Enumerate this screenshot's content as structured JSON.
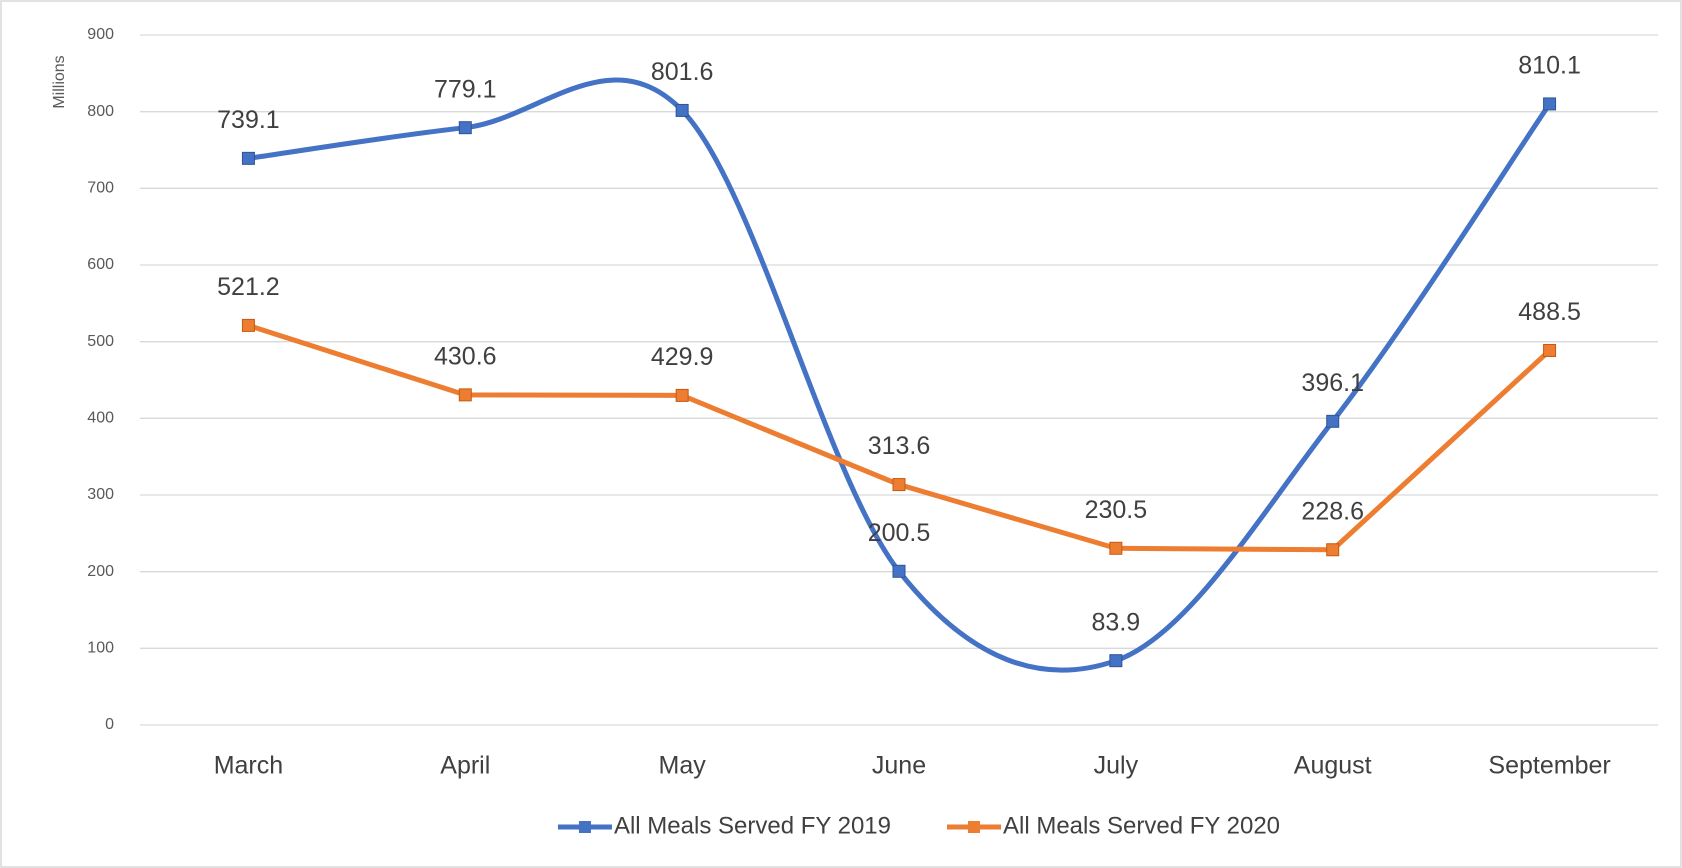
{
  "chart_data": {
    "type": "line",
    "y_label": "Millions",
    "categories": [
      "March",
      "April",
      "May",
      "June",
      "July",
      "August",
      "September"
    ],
    "series": [
      {
        "name": "All Meals Served FY 2019",
        "color": "#4472c4",
        "smooth": true,
        "values": [
          739.1,
          779.1,
          801.6,
          200.5,
          83.9,
          396.1,
          810.1
        ]
      },
      {
        "name": "All Meals Served FY 2020",
        "color": "#ed7d31",
        "smooth": false,
        "values": [
          521.2,
          430.6,
          429.9,
          313.6,
          230.5,
          228.6,
          488.5
        ]
      }
    ],
    "ylim": [
      0,
      900
    ],
    "yticks": [
      0,
      100,
      200,
      300,
      400,
      500,
      600,
      700,
      800,
      900
    ],
    "grid": true,
    "legend": "bottom"
  }
}
